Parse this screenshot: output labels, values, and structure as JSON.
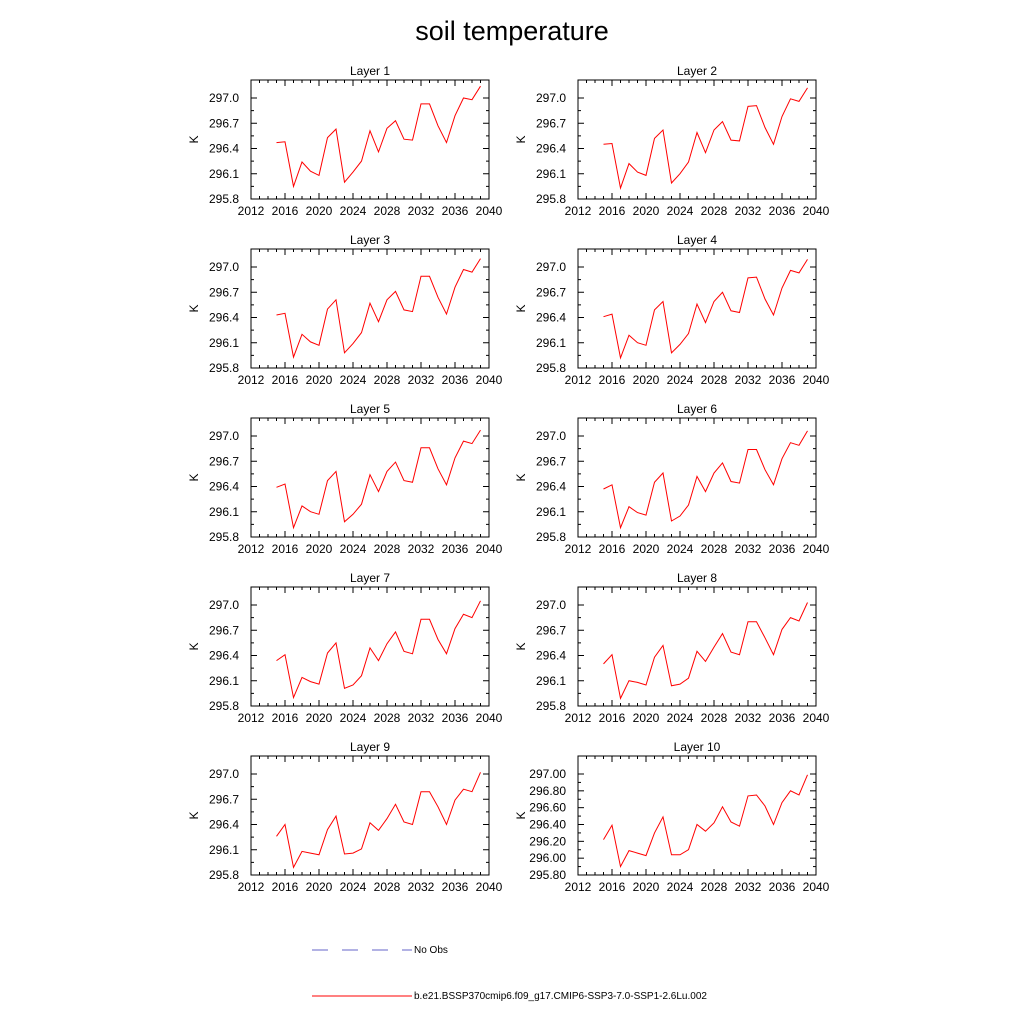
{
  "title": "soil temperature",
  "ylabel": "K",
  "xticks": [
    2012,
    2016,
    2020,
    2024,
    2028,
    2032,
    2036,
    2040
  ],
  "line_color": "#ff0000",
  "obs_color": "#6464c8",
  "legend": [
    {
      "label": "No Obs",
      "style": "dashed",
      "color": "#6464c8"
    },
    {
      "label": "b.e21.BSSP370cmip6.f09_g17.CMIP6-SSP3-7.0-SSP1-2.6Lu.002",
      "style": "solid",
      "color": "#ff0000"
    }
  ],
  "chart_data": [
    {
      "type": "line",
      "title": "Layer 1",
      "ylabel": "K",
      "xlim": [
        2012,
        2040
      ],
      "ylim": [
        295.8,
        297.0
      ],
      "yticks": [
        "295.8",
        "296.1",
        "296.4",
        "296.7",
        "297.0"
      ],
      "series": [
        {
          "x": [
            2015,
            2016,
            2017,
            2018,
            2019,
            2020,
            2021,
            2022,
            2023,
            2024,
            2025,
            2026,
            2027,
            2028,
            2029,
            2030,
            2031,
            2032,
            2033,
            2034,
            2035,
            2036,
            2037,
            2038,
            2039
          ],
          "values": [
            296.47,
            296.48,
            295.95,
            296.24,
            296.13,
            296.08,
            296.53,
            296.63,
            296.0,
            296.12,
            296.25,
            296.61,
            296.36,
            296.64,
            296.73,
            296.51,
            296.5,
            296.93,
            296.93,
            296.67,
            296.47,
            296.79,
            297.0,
            296.98,
            297.14
          ]
        }
      ]
    },
    {
      "type": "line",
      "title": "Layer 2",
      "ylabel": "K",
      "xlim": [
        2012,
        2040
      ],
      "ylim": [
        295.8,
        297.0
      ],
      "yticks": [
        "295.8",
        "296.1",
        "296.4",
        "296.7",
        "297.0"
      ],
      "series": [
        {
          "x": [
            2015,
            2016,
            2017,
            2018,
            2019,
            2020,
            2021,
            2022,
            2023,
            2024,
            2025,
            2026,
            2027,
            2028,
            2029,
            2030,
            2031,
            2032,
            2033,
            2034,
            2035,
            2036,
            2037,
            2038,
            2039
          ],
          "values": [
            296.45,
            296.46,
            295.93,
            296.22,
            296.12,
            296.08,
            296.52,
            296.62,
            295.99,
            296.1,
            296.24,
            296.59,
            296.35,
            296.62,
            296.72,
            296.5,
            296.49,
            296.9,
            296.91,
            296.65,
            296.45,
            296.78,
            296.99,
            296.96,
            297.12
          ]
        }
      ]
    },
    {
      "type": "line",
      "title": "Layer 3",
      "ylabel": "K",
      "xlim": [
        2012,
        2040
      ],
      "ylim": [
        295.8,
        297.0
      ],
      "yticks": [
        "295.8",
        "296.1",
        "296.4",
        "296.7",
        "297.0"
      ],
      "series": [
        {
          "x": [
            2015,
            2016,
            2017,
            2018,
            2019,
            2020,
            2021,
            2022,
            2023,
            2024,
            2025,
            2026,
            2027,
            2028,
            2029,
            2030,
            2031,
            2032,
            2033,
            2034,
            2035,
            2036,
            2037,
            2038,
            2039
          ],
          "values": [
            296.43,
            296.45,
            295.93,
            296.2,
            296.11,
            296.07,
            296.5,
            296.61,
            295.98,
            296.09,
            296.22,
            296.57,
            296.35,
            296.61,
            296.71,
            296.49,
            296.47,
            296.89,
            296.89,
            296.64,
            296.44,
            296.76,
            296.97,
            296.94,
            297.1
          ]
        }
      ]
    },
    {
      "type": "line",
      "title": "Layer 4",
      "ylabel": "K",
      "xlim": [
        2012,
        2040
      ],
      "ylim": [
        295.8,
        297.0
      ],
      "yticks": [
        "295.8",
        "296.1",
        "296.4",
        "296.7",
        "297.0"
      ],
      "series": [
        {
          "x": [
            2015,
            2016,
            2017,
            2018,
            2019,
            2020,
            2021,
            2022,
            2023,
            2024,
            2025,
            2026,
            2027,
            2028,
            2029,
            2030,
            2031,
            2032,
            2033,
            2034,
            2035,
            2036,
            2037,
            2038,
            2039
          ],
          "values": [
            296.41,
            296.44,
            295.92,
            296.19,
            296.1,
            296.07,
            296.49,
            296.59,
            295.98,
            296.08,
            296.21,
            296.56,
            296.34,
            296.59,
            296.7,
            296.48,
            296.46,
            296.87,
            296.88,
            296.62,
            296.43,
            296.75,
            296.96,
            296.93,
            297.09
          ]
        }
      ]
    },
    {
      "type": "line",
      "title": "Layer 5",
      "ylabel": "K",
      "xlim": [
        2012,
        2040
      ],
      "ylim": [
        295.8,
        297.0
      ],
      "yticks": [
        "295.8",
        "296.1",
        "296.4",
        "296.7",
        "297.0"
      ],
      "series": [
        {
          "x": [
            2015,
            2016,
            2017,
            2018,
            2019,
            2020,
            2021,
            2022,
            2023,
            2024,
            2025,
            2026,
            2027,
            2028,
            2029,
            2030,
            2031,
            2032,
            2033,
            2034,
            2035,
            2036,
            2037,
            2038,
            2039
          ],
          "values": [
            296.39,
            296.43,
            295.91,
            296.17,
            296.1,
            296.07,
            296.47,
            296.58,
            295.98,
            296.07,
            296.19,
            296.54,
            296.34,
            296.58,
            296.69,
            296.47,
            296.45,
            296.86,
            296.86,
            296.61,
            296.42,
            296.74,
            296.94,
            296.91,
            297.07
          ]
        }
      ]
    },
    {
      "type": "line",
      "title": "Layer 6",
      "ylabel": "K",
      "xlim": [
        2012,
        2040
      ],
      "ylim": [
        295.8,
        297.0
      ],
      "yticks": [
        "295.8",
        "296.1",
        "296.4",
        "296.7",
        "297.0"
      ],
      "series": [
        {
          "x": [
            2015,
            2016,
            2017,
            2018,
            2019,
            2020,
            2021,
            2022,
            2023,
            2024,
            2025,
            2026,
            2027,
            2028,
            2029,
            2030,
            2031,
            2032,
            2033,
            2034,
            2035,
            2036,
            2037,
            2038,
            2039
          ],
          "values": [
            296.37,
            296.42,
            295.91,
            296.16,
            296.09,
            296.06,
            296.45,
            296.56,
            295.99,
            296.05,
            296.18,
            296.52,
            296.34,
            296.56,
            296.68,
            296.46,
            296.44,
            296.84,
            296.84,
            296.6,
            296.42,
            296.73,
            296.92,
            296.89,
            297.06
          ]
        }
      ]
    },
    {
      "type": "line",
      "title": "Layer 7",
      "ylabel": "K",
      "xlim": [
        2012,
        2040
      ],
      "ylim": [
        295.8,
        297.0
      ],
      "yticks": [
        "295.8",
        "296.1",
        "296.4",
        "296.7",
        "297.0"
      ],
      "series": [
        {
          "x": [
            2015,
            2016,
            2017,
            2018,
            2019,
            2020,
            2021,
            2022,
            2023,
            2024,
            2025,
            2026,
            2027,
            2028,
            2029,
            2030,
            2031,
            2032,
            2033,
            2034,
            2035,
            2036,
            2037,
            2038,
            2039
          ],
          "values": [
            296.34,
            296.41,
            295.9,
            296.14,
            296.09,
            296.06,
            296.43,
            296.55,
            296.01,
            296.05,
            296.16,
            296.49,
            296.34,
            296.54,
            296.68,
            296.45,
            296.42,
            296.83,
            296.83,
            296.59,
            296.42,
            296.72,
            296.89,
            296.85,
            297.05
          ]
        }
      ]
    },
    {
      "type": "line",
      "title": "Layer 8",
      "ylabel": "K",
      "xlim": [
        2012,
        2040
      ],
      "ylim": [
        295.8,
        297.0
      ],
      "yticks": [
        "295.8",
        "296.1",
        "296.4",
        "296.7",
        "297.0"
      ],
      "series": [
        {
          "x": [
            2015,
            2016,
            2017,
            2018,
            2019,
            2020,
            2021,
            2022,
            2023,
            2024,
            2025,
            2026,
            2027,
            2028,
            2029,
            2030,
            2031,
            2032,
            2033,
            2034,
            2035,
            2036,
            2037,
            2038,
            2039
          ],
          "values": [
            296.3,
            296.41,
            295.89,
            296.1,
            296.08,
            296.05,
            296.38,
            296.52,
            296.04,
            296.06,
            296.13,
            296.45,
            296.33,
            296.5,
            296.66,
            296.44,
            296.41,
            296.8,
            296.8,
            296.61,
            296.41,
            296.71,
            296.85,
            296.81,
            297.03
          ]
        }
      ]
    },
    {
      "type": "line",
      "title": "Layer 9",
      "ylabel": "K",
      "xlim": [
        2012,
        2040
      ],
      "ylim": [
        295.8,
        297.0
      ],
      "yticks": [
        "295.8",
        "296.1",
        "296.4",
        "296.7",
        "297.0"
      ],
      "series": [
        {
          "x": [
            2015,
            2016,
            2017,
            2018,
            2019,
            2020,
            2021,
            2022,
            2023,
            2024,
            2025,
            2026,
            2027,
            2028,
            2029,
            2030,
            2031,
            2032,
            2033,
            2034,
            2035,
            2036,
            2037,
            2038,
            2039
          ],
          "values": [
            296.26,
            296.4,
            295.89,
            296.08,
            296.06,
            296.04,
            296.34,
            296.5,
            296.05,
            296.06,
            296.11,
            296.42,
            296.33,
            296.47,
            296.64,
            296.43,
            296.4,
            296.79,
            296.79,
            296.61,
            296.4,
            296.69,
            296.82,
            296.79,
            297.02
          ]
        }
      ]
    },
    {
      "type": "line",
      "title": "Layer 10",
      "ylabel": "K",
      "xlim": [
        2012,
        2040
      ],
      "ylim": [
        295.8,
        297.0
      ],
      "yticks": [
        "295.80",
        "296.00",
        "296.20",
        "296.40",
        "296.60",
        "296.80",
        "297.00"
      ],
      "series": [
        {
          "x": [
            2015,
            2016,
            2017,
            2018,
            2019,
            2020,
            2021,
            2022,
            2023,
            2024,
            2025,
            2026,
            2027,
            2028,
            2029,
            2030,
            2031,
            2032,
            2033,
            2034,
            2035,
            2036,
            2037,
            2038,
            2039
          ],
          "values": [
            296.22,
            296.39,
            295.9,
            296.09,
            296.06,
            296.03,
            296.3,
            296.49,
            296.04,
            296.04,
            296.1,
            296.4,
            296.32,
            296.42,
            296.61,
            296.43,
            296.38,
            296.74,
            296.75,
            296.62,
            296.4,
            296.66,
            296.8,
            296.75,
            296.99
          ]
        }
      ]
    }
  ]
}
